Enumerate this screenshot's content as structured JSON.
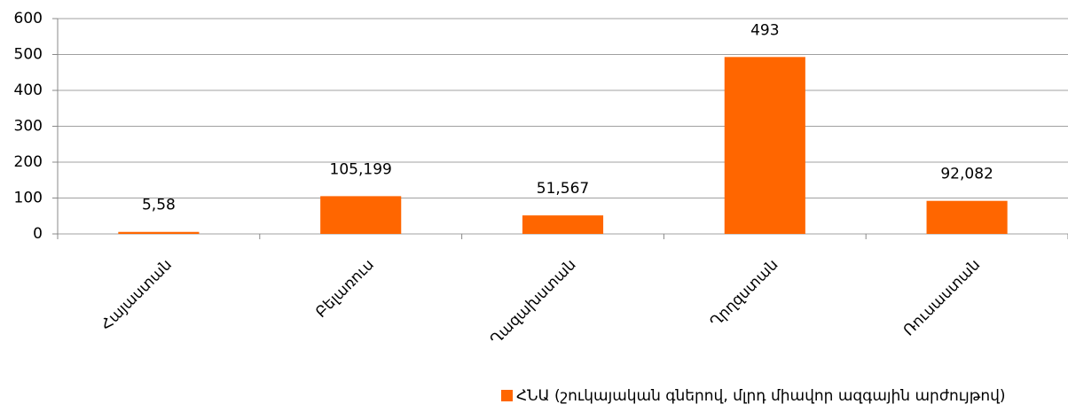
{
  "chart_data": {
    "type": "bar",
    "categories": [
      "Հայաստան",
      "Բելառուս",
      "Ղազախստան",
      "Ղրղզստան",
      "Ռուսաստան"
    ],
    "series": [
      {
        "name": "ՀՆԱ (շուկայական գներով, մլրդ միավոր  ազգային արժույթով)",
        "color": "#ff6600",
        "values": [
          5.58,
          105.199,
          51.567,
          493,
          92.082
        ],
        "value_labels": [
          "5,58",
          "105,199",
          "51,567",
          "493",
          "92,082"
        ]
      }
    ],
    "ylim": [
      0,
      600
    ],
    "yticks": [
      0,
      100,
      200,
      300,
      400,
      500,
      600
    ],
    "grid": true,
    "legend": "bottom-right"
  }
}
